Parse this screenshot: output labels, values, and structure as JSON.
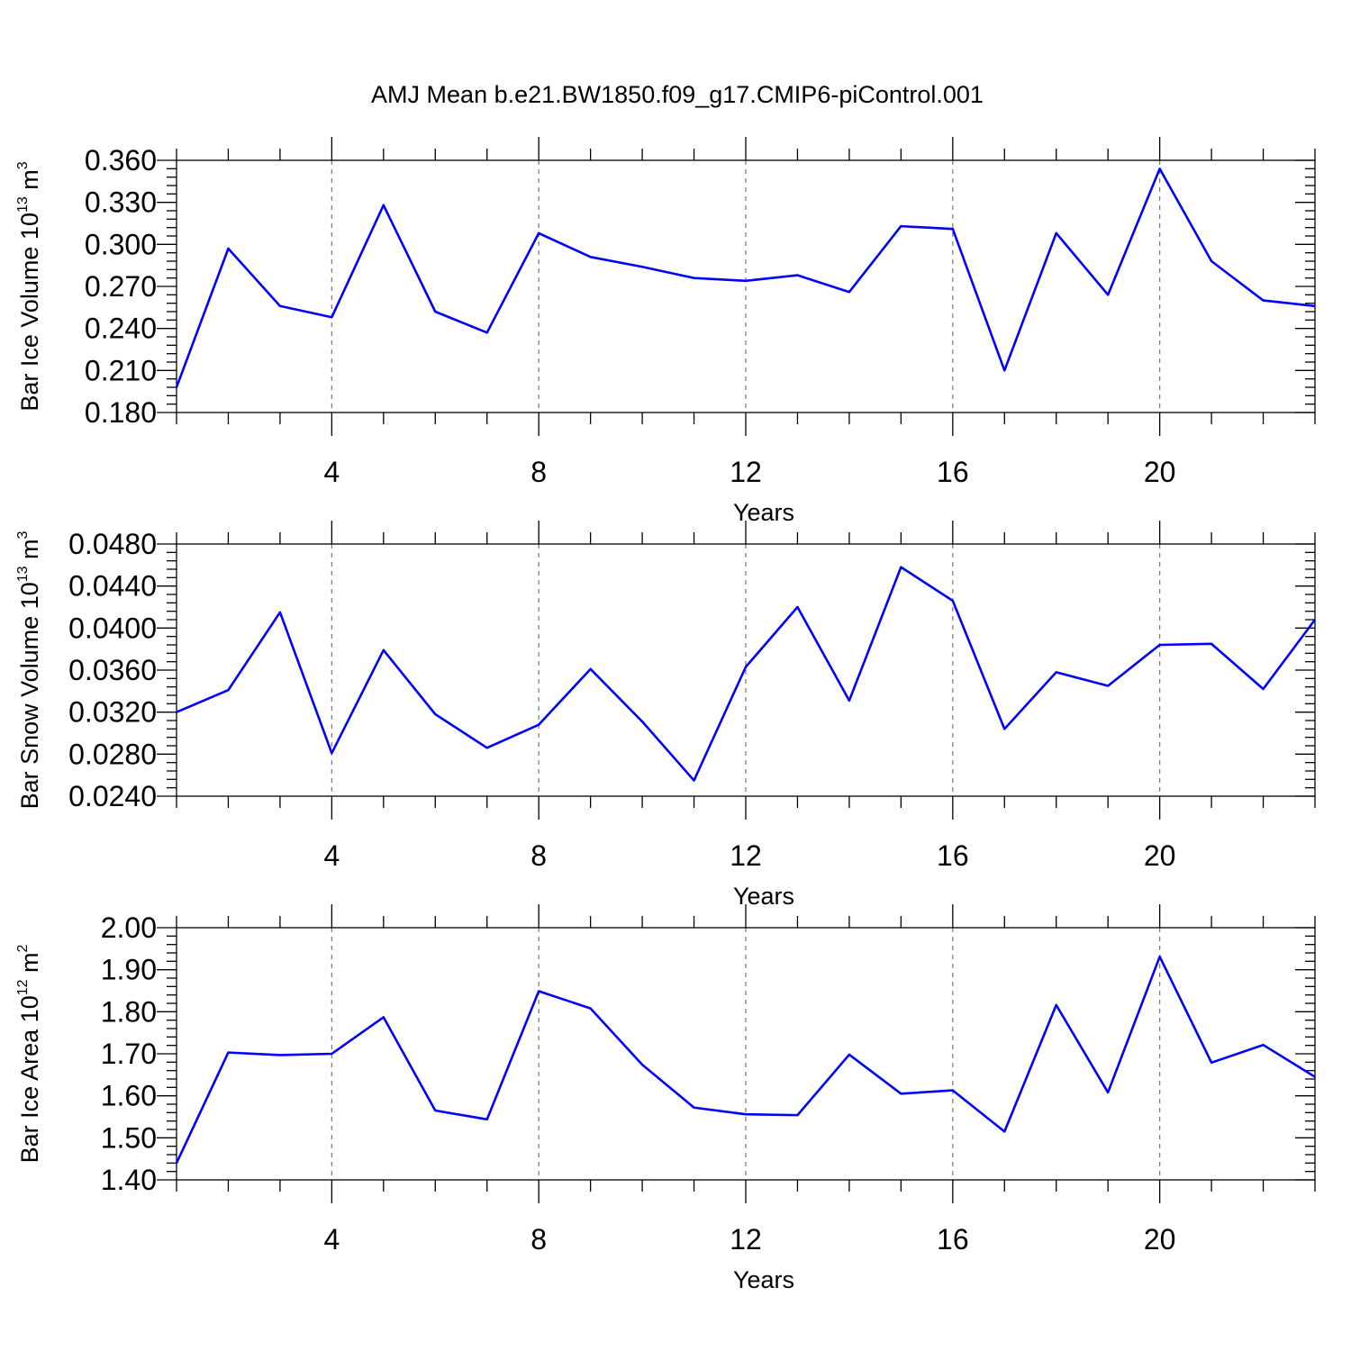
{
  "figure": {
    "title": "AMJ Mean b.e21.BW1850.f09_g17.CMIP6-piControl.001"
  },
  "colors": {
    "series": "#0000ff",
    "background": "#ffffff"
  },
  "chart_data": [
    {
      "type": "line",
      "title": "",
      "xlabel": "Years",
      "ylabel": {
        "text": "Bar Ice Volume 10",
        "exp1": "13",
        "unit": " m",
        "exp2": "3"
      },
      "xlim": [
        1,
        23
      ],
      "ylim": [
        0.18,
        0.36
      ],
      "xticks": [
        4,
        8,
        12,
        16,
        20
      ],
      "xtick_labels": [
        "4",
        "8",
        "12",
        "16",
        "20"
      ],
      "yticks": [
        0.18,
        0.21,
        0.24,
        0.27,
        0.3,
        0.33,
        0.36
      ],
      "ytick_labels": [
        "0.180",
        "0.210",
        "0.240",
        "0.270",
        "0.300",
        "0.330",
        "0.360"
      ],
      "grid_x": true,
      "x": [
        1,
        2,
        3,
        4,
        5,
        6,
        7,
        8,
        9,
        10,
        11,
        12,
        13,
        14,
        15,
        16,
        17,
        18,
        19,
        20,
        21,
        22,
        23
      ],
      "series": [
        {
          "name": "Bar Ice Volume",
          "values": [
            0.198,
            0.297,
            0.256,
            0.248,
            0.328,
            0.252,
            0.237,
            0.308,
            0.291,
            0.284,
            0.276,
            0.274,
            0.278,
            0.266,
            0.313,
            0.311,
            0.21,
            0.308,
            0.264,
            0.354,
            0.288,
            0.26,
            0.256
          ]
        }
      ]
    },
    {
      "type": "line",
      "title": "",
      "xlabel": "Years",
      "ylabel": {
        "text": "Bar Snow Volume 10",
        "exp1": "13",
        "unit": " m",
        "exp2": "3"
      },
      "xlim": [
        1,
        23
      ],
      "ylim": [
        0.024,
        0.048
      ],
      "xticks": [
        4,
        8,
        12,
        16,
        20
      ],
      "xtick_labels": [
        "4",
        "8",
        "12",
        "16",
        "20"
      ],
      "yticks": [
        0.024,
        0.028,
        0.032,
        0.036,
        0.04,
        0.044,
        0.048
      ],
      "ytick_labels": [
        "0.0240",
        "0.0280",
        "0.0320",
        "0.0360",
        "0.0400",
        "0.0440",
        "0.0480"
      ],
      "grid_x": true,
      "x": [
        1,
        2,
        3,
        4,
        5,
        6,
        7,
        8,
        9,
        10,
        11,
        12,
        13,
        14,
        15,
        16,
        17,
        18,
        19,
        20,
        21,
        22,
        23
      ],
      "series": [
        {
          "name": "Bar Snow Volume",
          "values": [
            0.032,
            0.0341,
            0.0415,
            0.0281,
            0.0379,
            0.0318,
            0.0286,
            0.0308,
            0.0361,
            0.0311,
            0.0255,
            0.0363,
            0.042,
            0.0331,
            0.0458,
            0.0426,
            0.0304,
            0.0358,
            0.0345,
            0.0384,
            0.0385,
            0.0342,
            0.0408
          ]
        }
      ]
    },
    {
      "type": "line",
      "title": "",
      "xlabel": "Years",
      "ylabel": {
        "text": "Bar Ice Area 10",
        "exp1": "12",
        "unit": " m",
        "exp2": "2"
      },
      "xlim": [
        1,
        23
      ],
      "ylim": [
        1.4,
        2.0
      ],
      "xticks": [
        4,
        8,
        12,
        16,
        20
      ],
      "xtick_labels": [
        "4",
        "8",
        "12",
        "16",
        "20"
      ],
      "yticks": [
        1.4,
        1.5,
        1.6,
        1.7,
        1.8,
        1.9,
        2.0
      ],
      "ytick_labels": [
        "1.40",
        "1.50",
        "1.60",
        "1.70",
        "1.80",
        "1.90",
        "2.00"
      ],
      "grid_x": true,
      "x": [
        1,
        2,
        3,
        4,
        5,
        6,
        7,
        8,
        9,
        10,
        11,
        12,
        13,
        14,
        15,
        16,
        17,
        18,
        19,
        20,
        21,
        22,
        23
      ],
      "series": [
        {
          "name": "Bar Ice Area",
          "values": [
            1.44,
            1.703,
            1.697,
            1.7,
            1.787,
            1.565,
            1.544,
            1.849,
            1.808,
            1.674,
            1.572,
            1.556,
            1.554,
            1.698,
            1.605,
            1.613,
            1.515,
            1.816,
            1.608,
            1.931,
            1.679,
            1.721,
            1.645
          ]
        }
      ]
    }
  ]
}
